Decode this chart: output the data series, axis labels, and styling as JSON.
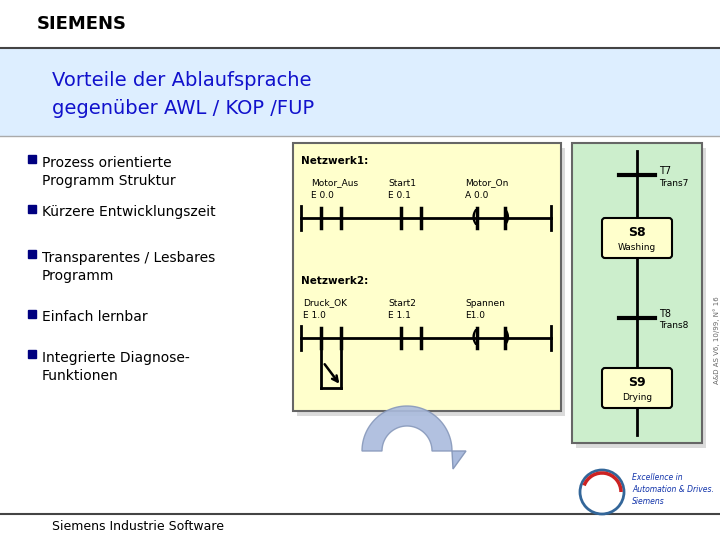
{
  "bg_color": "#e8e8e8",
  "slide_bg": "#ffffff",
  "header_bg": "#ddeeff",
  "title_line1": "Vorteile der Ablaufsprache",
  "title_line2": "gegenüber AWL / KOP /FUP",
  "title_color": "#1111cc",
  "siemens_text": "SIEMENS",
  "siemens_color": "#000000",
  "bullets": [
    [
      "Prozess orientierte",
      "Programm Struktur"
    ],
    [
      "Kürzere Entwicklungszeit"
    ],
    [
      "Transparentes / Lesbares",
      "Programm"
    ],
    [
      "Einfach lernbar"
    ],
    [
      "Integrierte Diagnose-",
      "Funktionen"
    ]
  ],
  "bullet_color": "#000080",
  "kop_box_bg": "#ffffcc",
  "kop_box_border": "#888888",
  "sfc_box_bg": "#cceecc",
  "sfc_box_border": "#888888",
  "footer_text": "Siemens Industrie Software",
  "right_label": "A&D AS V6, 10/99, N° 16",
  "netz1_label": "Netzwerk1:",
  "netz1_vars": [
    [
      "Motor_Aus",
      "E 0.0"
    ],
    [
      "Start1",
      "E 0.1"
    ],
    [
      "Motor_On",
      "A 0.0"
    ]
  ],
  "netz2_label": "Netzwerk2:",
  "netz2_vars": [
    [
      "Druck_OK",
      "E 1.0"
    ],
    [
      "Start2",
      "E 1.1"
    ],
    [
      "Spannen",
      "E1.0"
    ]
  ],
  "sfc_elements": [
    {
      "name": "T7",
      "label": "Trans7",
      "type": "trans"
    },
    {
      "name": "S8",
      "label": "Washing",
      "type": "state"
    },
    {
      "name": "T8",
      "label": "Trans8",
      "type": "trans"
    },
    {
      "name": "S9",
      "label": "Drying",
      "type": "state"
    }
  ]
}
